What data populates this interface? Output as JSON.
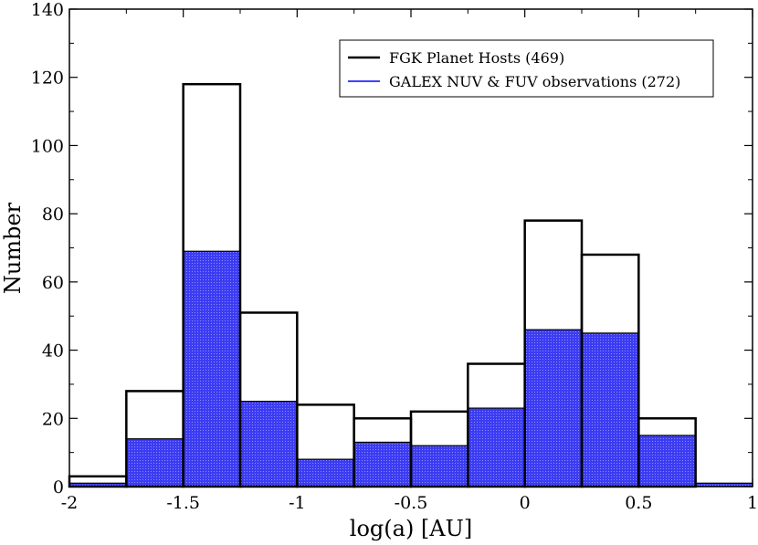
{
  "chart_data": {
    "type": "bar",
    "subtype": "histogram",
    "xlabel": "log(a) [AU]",
    "ylabel": "Number",
    "xlim": [
      -2,
      1
    ],
    "ylim": [
      0,
      140
    ],
    "x_ticks": [
      -2,
      -1.5,
      -1,
      -0.5,
      0,
      0.5,
      1
    ],
    "x_tick_labels": [
      "-2",
      "-1.5",
      "-1",
      "-0.5",
      "0",
      "0.5",
      "1"
    ],
    "y_ticks": [
      0,
      20,
      40,
      60,
      80,
      100,
      120,
      140
    ],
    "y_tick_labels": [
      "0",
      "20",
      "40",
      "60",
      "80",
      "100",
      "120",
      "140"
    ],
    "bin_edges": [
      -2,
      -1.75,
      -1.5,
      -1.25,
      -1,
      -0.75,
      -0.5,
      -0.25,
      0,
      0.25,
      0.5,
      0.75,
      1
    ],
    "legend_position": "top-right",
    "series": [
      {
        "name": "FGK Planet Hosts (469)",
        "style": "outline",
        "color": "#000000",
        "values": [
          3,
          28,
          118,
          51,
          24,
          20,
          22,
          36,
          78,
          68,
          20,
          0
        ]
      },
      {
        "name": "GALEX NUV & FUV observations (272)",
        "style": "filled",
        "color": "#0000ff",
        "values": [
          1,
          14,
          69,
          25,
          8,
          13,
          12,
          23,
          46,
          45,
          15,
          1
        ]
      }
    ]
  }
}
